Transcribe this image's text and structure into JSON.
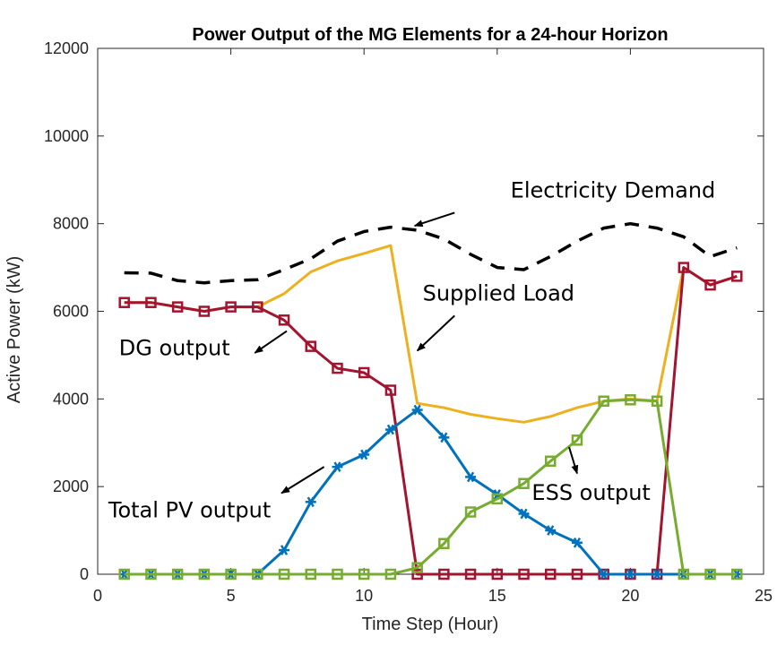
{
  "chart_data": {
    "type": "line",
    "title": "Power Output of the MG Elements for a 24-hour Horizon",
    "xlabel": "Time Step (Hour)",
    "ylabel": "Active Power (kW)",
    "xlim": [
      0,
      25
    ],
    "ylim": [
      0,
      12000
    ],
    "xticks": [
      0,
      5,
      10,
      15,
      20,
      25
    ],
    "yticks": [
      0,
      2000,
      4000,
      6000,
      8000,
      10000,
      12000
    ],
    "grid": false,
    "x": [
      1,
      2,
      3,
      4,
      5,
      6,
      7,
      8,
      9,
      10,
      11,
      12,
      13,
      14,
      15,
      16,
      17,
      18,
      19,
      20,
      21,
      22,
      23,
      24
    ],
    "series": [
      {
        "name": "Electricity Demand",
        "color": "#000000",
        "style": "dashed",
        "marker": "none",
        "values": [
          6880,
          6870,
          6700,
          6650,
          6700,
          6720,
          6950,
          7200,
          7600,
          7820,
          7920,
          7850,
          7650,
          7300,
          7000,
          6950,
          7250,
          7600,
          7900,
          8000,
          7900,
          7700,
          7250,
          7450
        ]
      },
      {
        "name": "Supplied Load",
        "color": "#EDB120",
        "style": "solid",
        "marker": "none",
        "values": [
          6200,
          6200,
          6100,
          6000,
          6100,
          6100,
          6400,
          6900,
          7150,
          7320,
          7500,
          3900,
          3800,
          3650,
          3550,
          3470,
          3600,
          3800,
          3950,
          4000,
          3950,
          7000,
          6600,
          6800
        ]
      },
      {
        "name": "DG output",
        "color": "#A2142F",
        "style": "solid",
        "marker": "square",
        "values": [
          6200,
          6200,
          6100,
          6000,
          6100,
          6100,
          5800,
          5200,
          4700,
          4600,
          4200,
          0,
          0,
          0,
          0,
          0,
          0,
          0,
          0,
          0,
          0,
          7000,
          6600,
          6800
        ]
      },
      {
        "name": "Total PV output",
        "color": "#0072BD",
        "style": "solid",
        "marker": "asterisk",
        "values": [
          0,
          0,
          0,
          0,
          0,
          0,
          550,
          1650,
          2450,
          2730,
          3300,
          3750,
          3120,
          2220,
          1820,
          1380,
          1000,
          720,
          0,
          0,
          0,
          0,
          0,
          0
        ]
      },
      {
        "name": "ESS output",
        "color": "#77AC30",
        "style": "solid",
        "marker": "square",
        "values": [
          0,
          0,
          0,
          0,
          0,
          0,
          0,
          0,
          0,
          0,
          0,
          150,
          700,
          1420,
          1720,
          2070,
          2580,
          3060,
          3950,
          3980,
          3950,
          0,
          0,
          0
        ]
      }
    ],
    "annotations": [
      {
        "text": "Electricity Demand",
        "series": "Electricity Demand",
        "x": 15.5,
        "y": 8600,
        "arrow_from": [
          13.4,
          8250
        ],
        "arrow_to": [
          11.9,
          7950
        ]
      },
      {
        "text": "Supplied Load",
        "series": "Supplied Load",
        "x": 12.2,
        "y": 6250,
        "arrow_from": [
          13.4,
          5900
        ],
        "arrow_to": [
          12.0,
          5100
        ]
      },
      {
        "text": "DG output",
        "series": "DG output",
        "x": 0.8,
        "y": 5000,
        "arrow_from": [
          7.1,
          5550
        ],
        "arrow_to": [
          5.9,
          5050
        ]
      },
      {
        "text": "Total PV output",
        "series": "Total PV output",
        "x": 0.4,
        "y": 1300,
        "arrow_from": [
          8.5,
          2450
        ],
        "arrow_to": [
          6.9,
          1850
        ]
      },
      {
        "text": "ESS output",
        "series": "ESS output",
        "x": 16.3,
        "y": 1700,
        "arrow_from": [
          17.7,
          2900
        ],
        "arrow_to": [
          18.0,
          2300
        ]
      }
    ]
  }
}
